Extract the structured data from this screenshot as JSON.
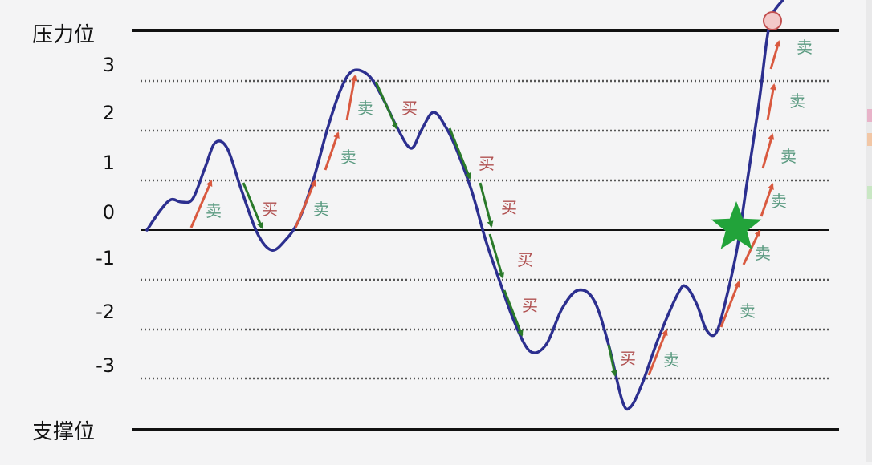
{
  "diagram": {
    "resistance_label": "压力位",
    "support_label": "支撑位",
    "levels": [
      {
        "label": "3",
        "value": 3
      },
      {
        "label": "2",
        "value": 2
      },
      {
        "label": "1",
        "value": 1
      },
      {
        "label": "0",
        "value": 0
      },
      {
        "label": "-1",
        "value": -1
      },
      {
        "label": "-2",
        "value": -2
      },
      {
        "label": "-3",
        "value": -3
      }
    ],
    "buy_label": "买",
    "sell_label": "卖",
    "colors": {
      "price_curve": "#2c2f8f",
      "solid_line": "#111111",
      "dotted_line": "#555555",
      "sell_arrow": "#d9593f",
      "buy_arrow": "#2a7a2a",
      "sell_text": "#5a9a80",
      "buy_text": "#b05050",
      "star": "#22a33a",
      "breakout_circle": "#f3c9c9",
      "breakout_circle_stroke": "#c25050"
    }
  }
}
